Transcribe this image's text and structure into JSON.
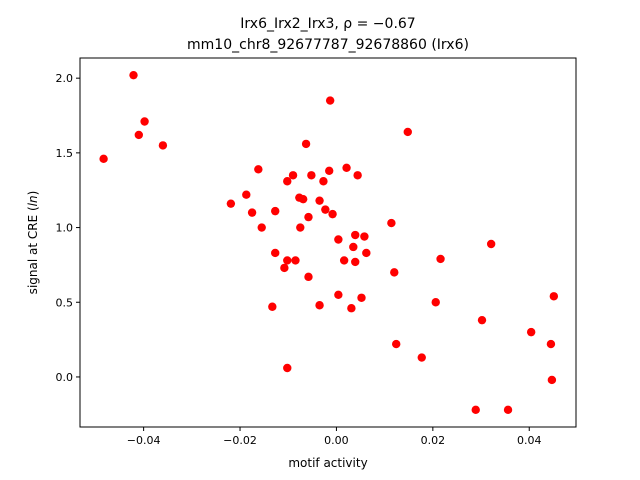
{
  "chart_data": {
    "type": "scatter",
    "title_line1": "Irx6_Irx2_Irx3, ρ = −0.67",
    "title_line2": "mm10_chr8_92677787_92678860 (Irx6)",
    "xlabel": "motif activity",
    "ylabel_prefix": "signal at CRE (",
    "ylabel_italic": "ln",
    "ylabel_suffix": ")",
    "xlim": [
      -0.0532,
      0.0497
    ],
    "ylim": [
      -0.335,
      2.135
    ],
    "xticks": [
      -0.04,
      -0.02,
      0.0,
      0.02,
      0.04
    ],
    "xtick_labels": [
      "−0.04",
      "−0.02",
      "0.00",
      "0.02",
      "0.04"
    ],
    "yticks": [
      0.0,
      0.5,
      1.0,
      1.5,
      2.0
    ],
    "ytick_labels": [
      "0.0",
      "0.5",
      "1.0",
      "1.5",
      "2.0"
    ],
    "marker_color": "#ff0000",
    "grid": false,
    "points": [
      {
        "x": -0.0483,
        "y": 1.46
      },
      {
        "x": -0.0421,
        "y": 2.02
      },
      {
        "x": -0.041,
        "y": 1.62
      },
      {
        "x": -0.0398,
        "y": 1.71
      },
      {
        "x": -0.036,
        "y": 1.55
      },
      {
        "x": -0.0219,
        "y": 1.16
      },
      {
        "x": -0.0187,
        "y": 1.22
      },
      {
        "x": -0.0175,
        "y": 1.1
      },
      {
        "x": -0.0162,
        "y": 1.39
      },
      {
        "x": -0.0155,
        "y": 1.0
      },
      {
        "x": -0.0133,
        "y": 0.47
      },
      {
        "x": -0.0127,
        "y": 1.11
      },
      {
        "x": -0.0127,
        "y": 0.83
      },
      {
        "x": -0.0108,
        "y": 0.73
      },
      {
        "x": -0.0102,
        "y": 1.31
      },
      {
        "x": -0.0102,
        "y": 0.78
      },
      {
        "x": -0.0102,
        "y": 0.06
      },
      {
        "x": -0.009,
        "y": 1.35
      },
      {
        "x": -0.0085,
        "y": 0.78
      },
      {
        "x": -0.0077,
        "y": 1.2
      },
      {
        "x": -0.0075,
        "y": 1.0
      },
      {
        "x": -0.0069,
        "y": 1.19
      },
      {
        "x": -0.0063,
        "y": 1.56
      },
      {
        "x": -0.0058,
        "y": 1.07
      },
      {
        "x": -0.0058,
        "y": 0.67
      },
      {
        "x": -0.0052,
        "y": 1.35
      },
      {
        "x": -0.0035,
        "y": 1.18
      },
      {
        "x": -0.0035,
        "y": 0.48
      },
      {
        "x": -0.0027,
        "y": 1.31
      },
      {
        "x": -0.0023,
        "y": 1.12
      },
      {
        "x": -0.0015,
        "y": 1.38
      },
      {
        "x": -0.0013,
        "y": 1.85
      },
      {
        "x": -0.0008,
        "y": 1.09
      },
      {
        "x": 0.0004,
        "y": 0.92
      },
      {
        "x": 0.0004,
        "y": 0.55
      },
      {
        "x": 0.0016,
        "y": 0.78
      },
      {
        "x": 0.0021,
        "y": 1.4
      },
      {
        "x": 0.0031,
        "y": 0.46
      },
      {
        "x": 0.0035,
        "y": 0.87
      },
      {
        "x": 0.0039,
        "y": 0.95
      },
      {
        "x": 0.0039,
        "y": 0.77
      },
      {
        "x": 0.0044,
        "y": 1.35
      },
      {
        "x": 0.0052,
        "y": 0.53
      },
      {
        "x": 0.0058,
        "y": 0.94
      },
      {
        "x": 0.0062,
        "y": 0.83
      },
      {
        "x": 0.0114,
        "y": 1.03
      },
      {
        "x": 0.012,
        "y": 0.7
      },
      {
        "x": 0.0124,
        "y": 0.22
      },
      {
        "x": 0.0148,
        "y": 1.64
      },
      {
        "x": 0.0177,
        "y": 0.13
      },
      {
        "x": 0.0206,
        "y": 0.5
      },
      {
        "x": 0.0216,
        "y": 0.79
      },
      {
        "x": 0.0289,
        "y": -0.22
      },
      {
        "x": 0.0302,
        "y": 0.38
      },
      {
        "x": 0.0321,
        "y": 0.89
      },
      {
        "x": 0.0356,
        "y": -0.22
      },
      {
        "x": 0.0404,
        "y": 0.3
      },
      {
        "x": 0.0445,
        "y": 0.22
      },
      {
        "x": 0.0447,
        "y": -0.02
      },
      {
        "x": 0.0451,
        "y": 0.54
      }
    ]
  }
}
